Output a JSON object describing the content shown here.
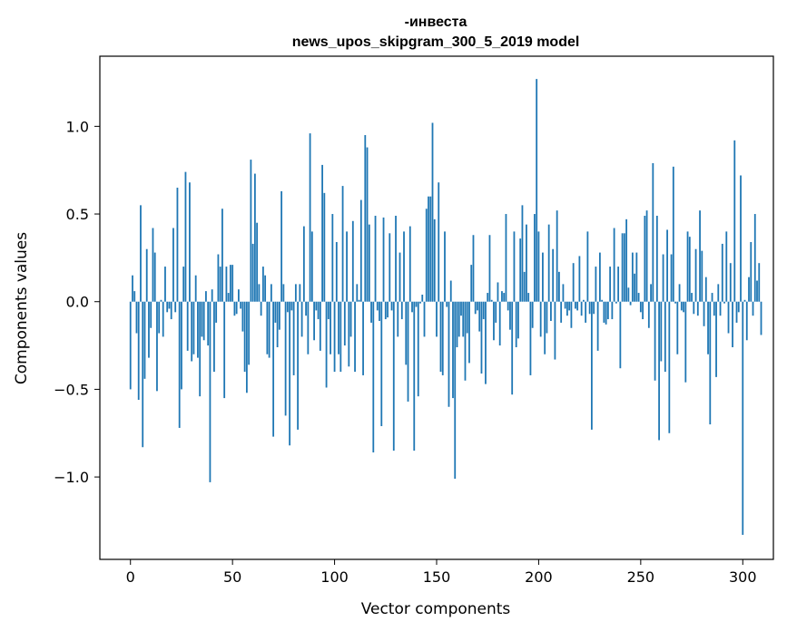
{
  "chart_data": {
    "type": "bar",
    "title": "-инвеста",
    "subtitle": "news_upos_skipgram_300_5_2019 model",
    "xlabel": "Vector components",
    "ylabel": "Components values",
    "xlim": [
      -15,
      315
    ],
    "ylim": [
      -1.47,
      1.4
    ],
    "xticks": [
      0,
      50,
      100,
      150,
      200,
      250,
      300
    ],
    "xtick_labels": [
      "0",
      "50",
      "100",
      "150",
      "200",
      "250",
      "300"
    ],
    "yticks": [
      -1.0,
      -0.5,
      0.0,
      0.5,
      1.0
    ],
    "ytick_labels": [
      "−1.0",
      "−0.5",
      "0.0",
      "0.5",
      "1.0"
    ],
    "bar_color": "#1f77b4",
    "grid": false,
    "values": [
      -0.5,
      0.15,
      0.06,
      -0.18,
      -0.56,
      0.55,
      -0.83,
      -0.44,
      0.3,
      -0.32,
      -0.15,
      0.42,
      0.28,
      -0.51,
      -0.18,
      0.01,
      -0.2,
      0.2,
      -0.06,
      -0.04,
      -0.1,
      0.42,
      -0.06,
      0.65,
      -0.72,
      -0.5,
      0.2,
      0.74,
      -0.28,
      0.68,
      -0.34,
      -0.3,
      0.15,
      -0.32,
      -0.54,
      -0.2,
      -0.22,
      0.06,
      -0.25,
      -1.03,
      0.07,
      -0.4,
      -0.12,
      0.27,
      0.2,
      0.53,
      -0.55,
      0.2,
      0.05,
      0.21,
      0.21,
      -0.08,
      -0.07,
      0.07,
      -0.04,
      -0.17,
      -0.4,
      -0.52,
      -0.36,
      0.81,
      0.33,
      0.73,
      0.45,
      0.1,
      -0.08,
      0.2,
      0.15,
      -0.3,
      -0.32,
      0.1,
      -0.77,
      -0.12,
      -0.26,
      -0.16,
      0.63,
      0.1,
      -0.65,
      -0.06,
      -0.82,
      -0.05,
      -0.42,
      0.1,
      -0.73,
      0.1,
      -0.2,
      0.43,
      -0.08,
      -0.3,
      0.96,
      0.4,
      -0.22,
      -0.05,
      -0.1,
      -0.28,
      0.78,
      0.62,
      -0.49,
      -0.1,
      -0.3,
      0.5,
      -0.4,
      0.34,
      -0.3,
      -0.4,
      0.66,
      -0.25,
      0.4,
      -0.37,
      -0.2,
      0.46,
      -0.4,
      0.1,
      0.01,
      0.58,
      -0.42,
      0.95,
      0.88,
      0.44,
      -0.12,
      -0.86,
      0.49,
      -0.05,
      -0.11,
      -0.71,
      0.48,
      -0.1,
      -0.09,
      0.39,
      -0.05,
      -0.85,
      0.49,
      -0.2,
      0.28,
      -0.1,
      0.4,
      -0.36,
      -0.57,
      0.43,
      -0.06,
      -0.85,
      -0.03,
      -0.54,
      -0.01,
      0.04,
      -0.2,
      0.53,
      0.6,
      0.6,
      1.02,
      0.47,
      -0.2,
      0.68,
      -0.4,
      -0.42,
      0.4,
      -0.03,
      -0.6,
      0.12,
      -0.55,
      -1.01,
      -0.26,
      -0.2,
      -0.08,
      -0.2,
      -0.45,
      -0.18,
      -0.35,
      0.21,
      0.38,
      -0.07,
      -0.05,
      -0.17,
      -0.41,
      -0.1,
      -0.47,
      0.05,
      0.38,
      0.01,
      -0.22,
      -0.12,
      0.11,
      -0.25,
      0.06,
      0.05,
      0.5,
      -0.05,
      -0.16,
      -0.53,
      0.4,
      -0.26,
      -0.21,
      0.36,
      0.55,
      0.17,
      0.44,
      0.05,
      -0.42,
      -0.15,
      0.5,
      1.27,
      0.4,
      -0.2,
      0.28,
      -0.3,
      -0.18,
      0.44,
      -0.11,
      0.3,
      -0.33,
      0.52,
      0.17,
      -0.12,
      0.1,
      -0.04,
      -0.08,
      -0.05,
      -0.15,
      0.22,
      -0.04,
      -0.05,
      0.26,
      -0.08,
      0.01,
      -0.12,
      0.4,
      -0.07,
      -0.73,
      -0.07,
      0.2,
      -0.28,
      0.28,
      0.01,
      -0.12,
      -0.13,
      -0.1,
      0.2,
      -0.1,
      0.42,
      -0.01,
      0.2,
      -0.38,
      0.39,
      0.39,
      0.47,
      0.08,
      -0.02,
      0.28,
      0.16,
      0.28,
      0.05,
      -0.06,
      -0.1,
      0.49,
      0.52,
      -0.15,
      0.1,
      0.79,
      -0.45,
      0.49,
      -0.79,
      -0.34,
      0.27,
      -0.4,
      0.41,
      -0.75,
      0.27,
      0.77,
      -0.01,
      -0.3,
      0.1,
      -0.05,
      -0.06,
      -0.46,
      0.4,
      0.37,
      0.05,
      -0.07,
      0.3,
      -0.08,
      0.52,
      0.29,
      -0.14,
      0.14,
      -0.3,
      -0.7,
      0.05,
      -0.08,
      -0.43,
      0.1,
      -0.08,
      0.33,
      -0.01,
      0.4,
      -0.18,
      0.22,
      -0.26,
      0.92,
      -0.12,
      -0.06,
      0.72,
      -1.33,
      0.01,
      -0.22,
      0.14,
      0.34,
      -0.08,
      0.5,
      0.12,
      0.22,
      -0.19
    ]
  }
}
